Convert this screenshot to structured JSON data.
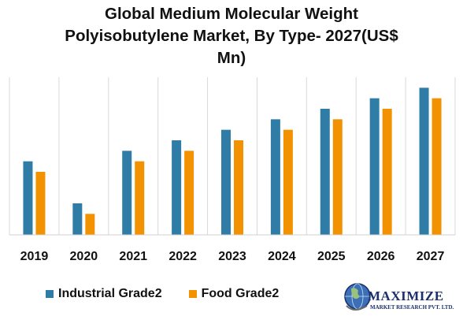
{
  "chart_data": {
    "type": "bar",
    "title": "Global Medium Molecular Weight\nPolyisobutylene Market, By Type- 2027(US$\nMn)",
    "xlabel": "",
    "ylabel": "",
    "categories": [
      "2019",
      "2020",
      "2021",
      "2022",
      "2023",
      "2024",
      "2025",
      "2026",
      "2027"
    ],
    "series": [
      {
        "name": "Industrial Grade2",
        "color": "#2f7ca6",
        "values": [
          7,
          3,
          8,
          9,
          10,
          11,
          12,
          13,
          14
        ]
      },
      {
        "name": "Food Grade2",
        "color": "#f39200",
        "values": [
          6,
          2,
          7,
          8,
          9,
          10,
          11,
          12,
          13
        ]
      }
    ],
    "ylim": [
      0,
      15
    ],
    "grid": "vertical category separators",
    "legend": "bottom-left"
  },
  "logo": {
    "name": "MAXIMIZE",
    "subtitle": "MARKET RESEARCH PVT. LTD."
  }
}
